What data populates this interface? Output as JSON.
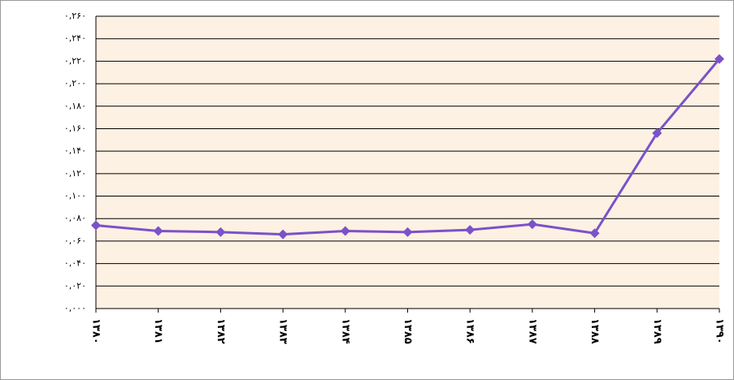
{
  "chart_data": {
    "type": "line",
    "categories": [
      "۱۳۸۰",
      "۱۳۸۱",
      "۱۳۸۲",
      "۱۳۸۳",
      "۱۳۸۴",
      "۱۳۸۵",
      "۱۳۸۶",
      "۱۳۸۷",
      "۱۳۸۸",
      "۱۳۸۹",
      "۱۳۹۰"
    ],
    "series": [
      {
        "color": "#7b52c9",
        "values": [
          0.074,
          0.069,
          0.068,
          0.066,
          0.069,
          0.068,
          0.07,
          0.075,
          0.067,
          0.156,
          0.222
        ]
      }
    ],
    "ylim": [
      0,
      0.26
    ],
    "yticks": [
      {
        "value": 0,
        "label": "۰,۰۰۰"
      },
      {
        "value": 0.02,
        "label": "۰,۰۲۰"
      },
      {
        "value": 0.04,
        "label": "۰,۰۴۰"
      },
      {
        "value": 0.06,
        "label": "۰,۰۶۰"
      },
      {
        "value": 0.08,
        "label": "۰,۰۸۰"
      },
      {
        "value": 0.1,
        "label": "۰,۱۰۰"
      },
      {
        "value": 0.12,
        "label": "۰,۱۲۰"
      },
      {
        "value": 0.14,
        "label": "۰,۱۴۰"
      },
      {
        "value": 0.16,
        "label": "۰,۱۶۰"
      },
      {
        "value": 0.18,
        "label": "۰,۱۸۰"
      },
      {
        "value": 0.2,
        "label": "۰,۲۰۰"
      },
      {
        "value": 0.22,
        "label": "۰,۲۲۰"
      },
      {
        "value": 0.24,
        "label": "۰,۲۴۰"
      },
      {
        "value": 0.26,
        "label": "۰,۲۶۰"
      }
    ],
    "grid": true
  }
}
